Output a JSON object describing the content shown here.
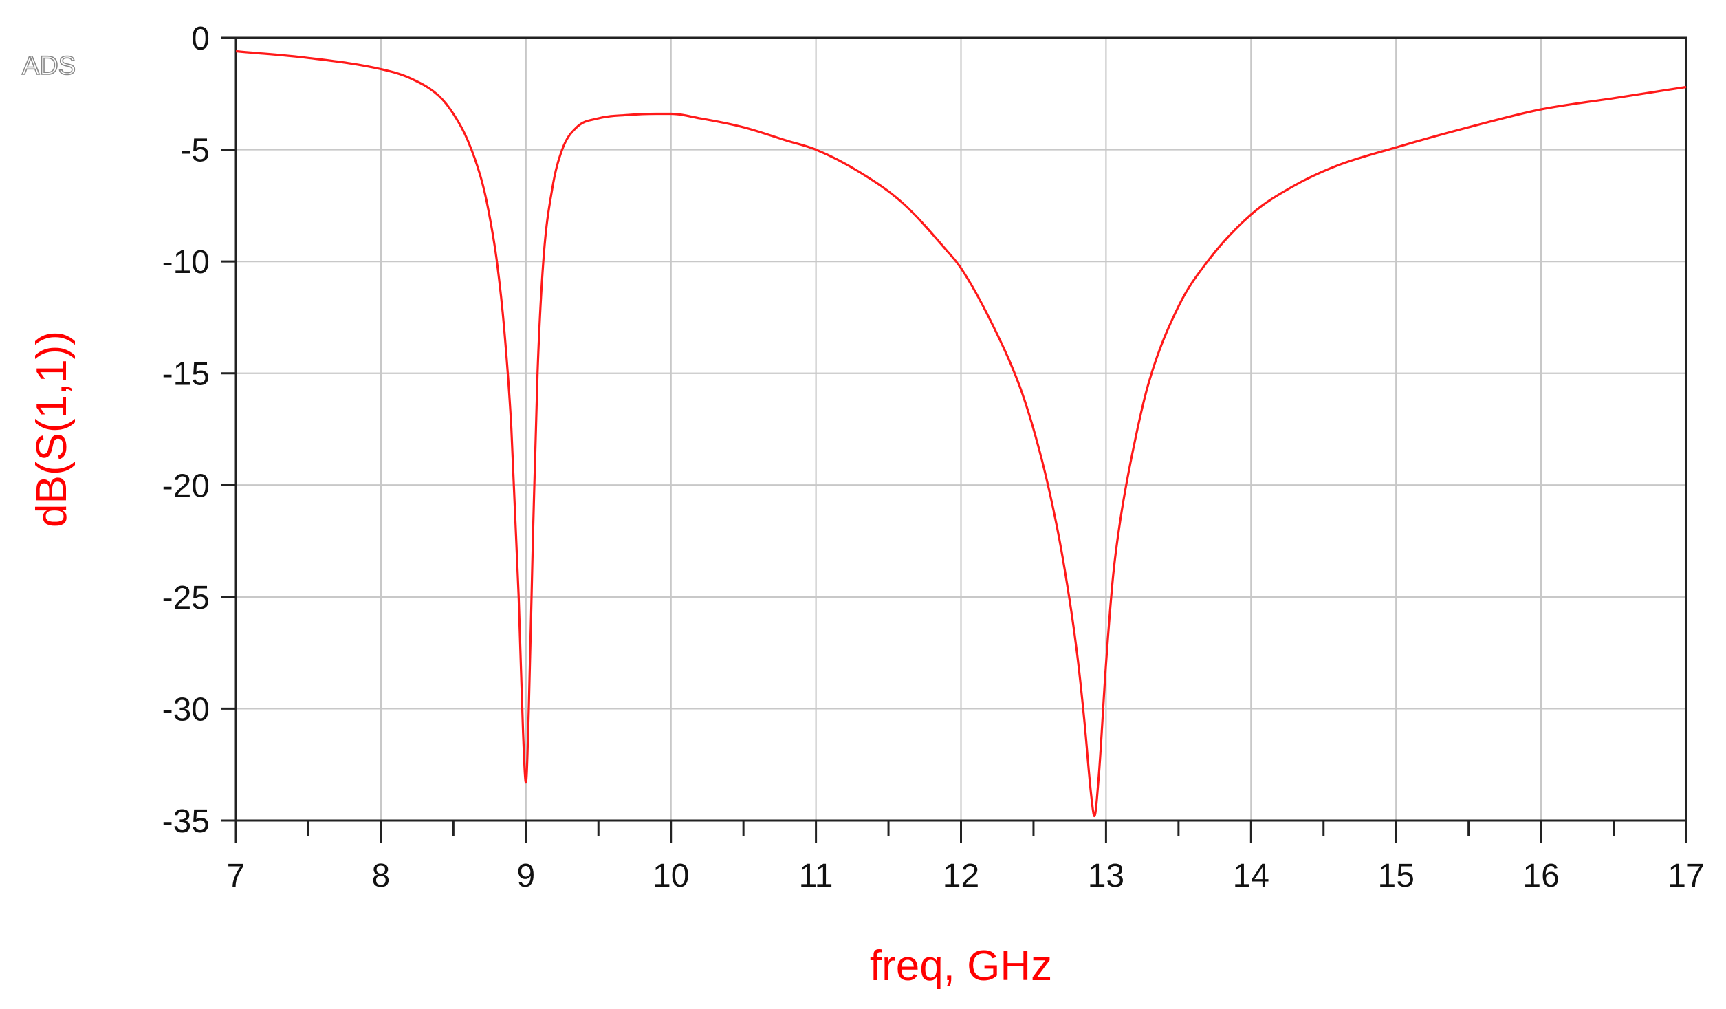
{
  "watermark": "ADS",
  "colors": {
    "trace": "#ff1a1a",
    "axis_label": "#ff0000",
    "grid": "#c8c8c8",
    "frame": "#222222"
  },
  "chart_data": {
    "type": "line",
    "title": "",
    "xlabel": "freq, GHz",
    "ylabel": "dB(S(1,1))",
    "xlim": [
      7,
      17
    ],
    "ylim": [
      -35,
      0
    ],
    "grid": true,
    "xticks": [
      7,
      8,
      9,
      10,
      11,
      12,
      13,
      14,
      15,
      16,
      17
    ],
    "xtick_labels": [
      "7",
      "8",
      "9",
      "10",
      "11",
      "12",
      "13",
      "14",
      "15",
      "16",
      "17"
    ],
    "yticks": [
      0,
      -5,
      -10,
      -15,
      -20,
      -25,
      -30,
      -35
    ],
    "ytick_labels": [
      "0",
      "-5",
      "-10",
      "-15",
      "-20",
      "-25",
      "-30",
      "-35"
    ],
    "series": [
      {
        "x": [
          7.0,
          7.5,
          8.0,
          8.2,
          8.4,
          8.5,
          8.6,
          8.7,
          8.75,
          8.8,
          8.85,
          8.9,
          8.95,
          8.98,
          9.0,
          9.02,
          9.05,
          9.08,
          9.12,
          9.18,
          9.25,
          9.35,
          9.5,
          9.7,
          9.9,
          10.0,
          10.2,
          10.5,
          10.8,
          11.0,
          11.3,
          11.6,
          11.9,
          12.0,
          12.2,
          12.4,
          12.5,
          12.6,
          12.7,
          12.8,
          12.85,
          12.9,
          12.92,
          12.95,
          13.0,
          13.05,
          13.1,
          13.2,
          13.3,
          13.5,
          13.7,
          14.0,
          14.3,
          14.6,
          15.0,
          15.5,
          16.0,
          16.5,
          17.0
        ],
        "y": [
          -0.6,
          -0.9,
          -1.4,
          -1.8,
          -2.6,
          -3.4,
          -4.6,
          -6.5,
          -8.0,
          -10.0,
          -13.0,
          -17.5,
          -25.0,
          -31.0,
          -33.3,
          -30.0,
          -22.0,
          -15.0,
          -10.0,
          -6.8,
          -5.0,
          -4.0,
          -3.6,
          -3.45,
          -3.4,
          -3.4,
          -3.6,
          -4.0,
          -4.6,
          -5.0,
          -6.0,
          -7.4,
          -9.5,
          -10.3,
          -12.6,
          -15.5,
          -17.5,
          -20.0,
          -23.2,
          -27.5,
          -30.5,
          -34.0,
          -34.8,
          -33.0,
          -28.0,
          -24.0,
          -21.5,
          -18.0,
          -15.3,
          -12.0,
          -10.0,
          -7.9,
          -6.6,
          -5.7,
          -4.9,
          -4.0,
          -3.2,
          -2.7,
          -2.2
        ]
      }
    ]
  }
}
